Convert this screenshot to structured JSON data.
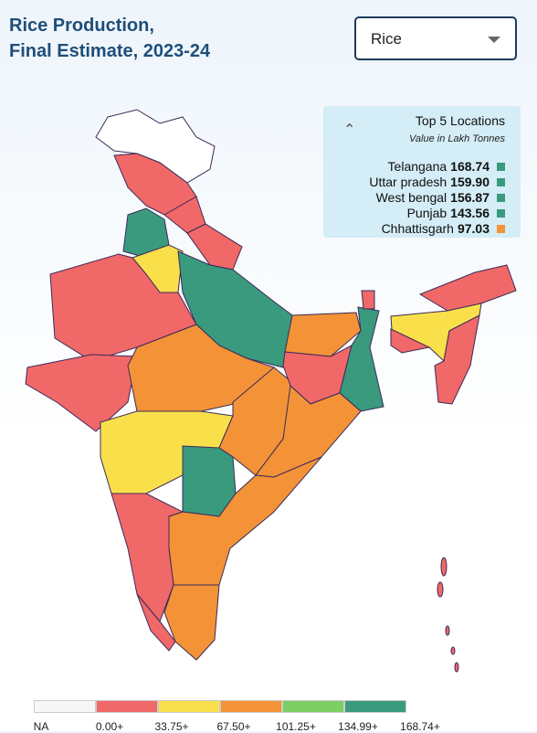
{
  "header": {
    "title": [
      "Rice Production,",
      "Final Estimate, 2023-24"
    ]
  },
  "dropdown": {
    "selected": "Rice"
  },
  "top_locations": {
    "title": "Top 5 Locations",
    "subtitle": "Value in Lakh Tonnes",
    "items": [
      {
        "name": "Telangana",
        "value": "168.74",
        "color": "#3a9a7e"
      },
      {
        "name": "Uttar pradesh",
        "value": "159.90",
        "color": "#3a9a7e"
      },
      {
        "name": "West bengal",
        "value": "156.87",
        "color": "#3a9a7e"
      },
      {
        "name": "Punjab",
        "value": "143.56",
        "color": "#3a9a7e"
      },
      {
        "name": "Chhattisgarh",
        "value": "97.03",
        "color": "#f39237"
      }
    ]
  },
  "legend": {
    "colors": [
      "#f7f7f7",
      "#f06868",
      "#f9e04b",
      "#f39237",
      "#7ccf63",
      "#3a9a7e"
    ],
    "labels": [
      "NA",
      "0.00+",
      "33.75+",
      "67.50+",
      "101.25+",
      "134.99+",
      "168.74+"
    ]
  }
}
